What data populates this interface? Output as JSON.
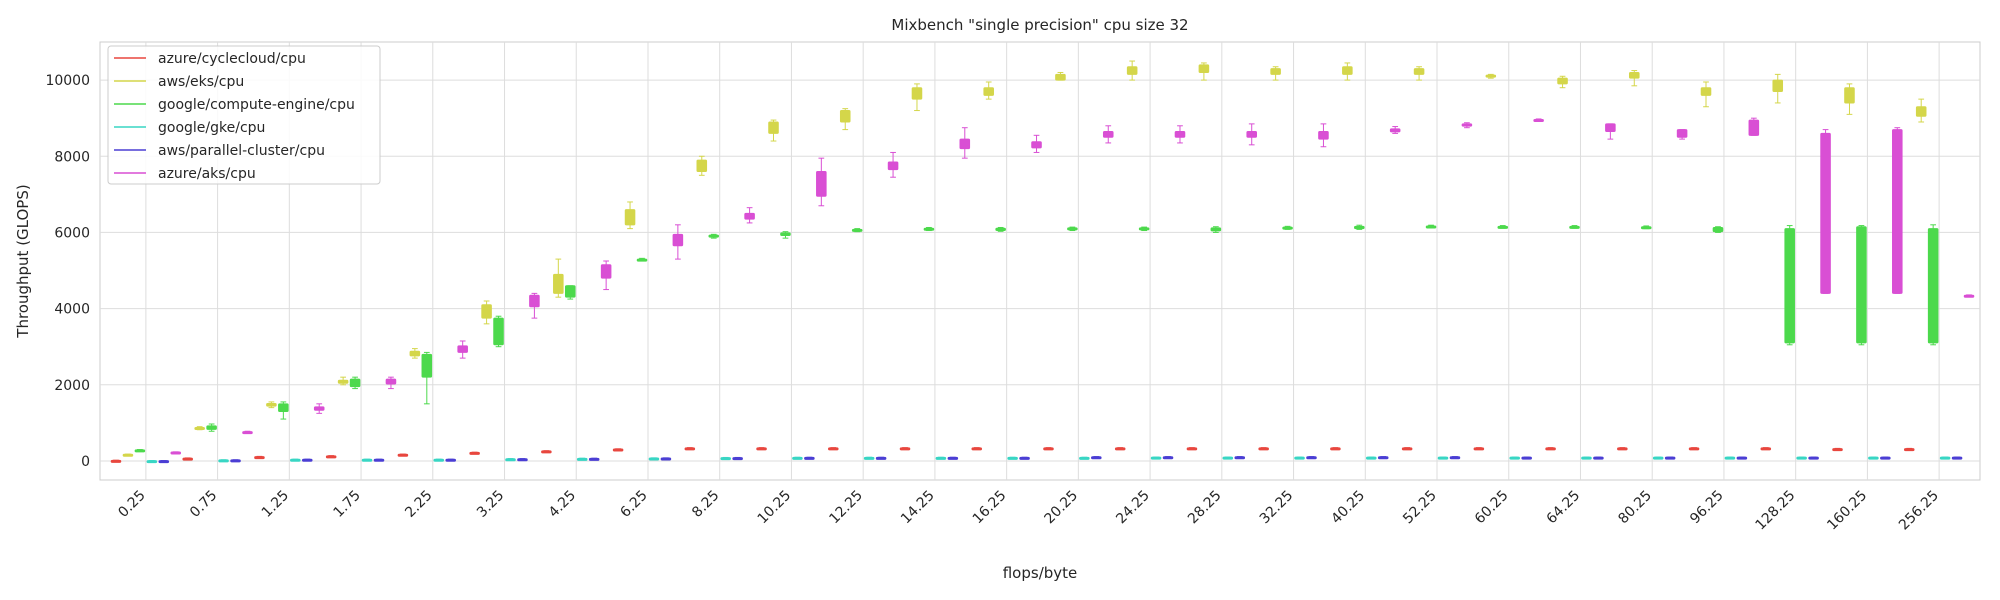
{
  "chart_data": {
    "type": "box",
    "title": "Mixbench \"single precision\" cpu size 32",
    "xlabel": "flops/byte",
    "ylabel": "Throughput (GLOPS)",
    "ylim": [
      -500,
      11000
    ],
    "yticks": [
      0,
      2000,
      4000,
      6000,
      8000,
      10000
    ],
    "grid": true,
    "legend_position": "top-left",
    "categories": [
      "0.25",
      "0.75",
      "1.25",
      "1.75",
      "2.25",
      "3.25",
      "4.25",
      "6.25",
      "8.25",
      "10.25",
      "12.25",
      "14.25",
      "16.25",
      "20.25",
      "24.25",
      "28.25",
      "32.25",
      "40.25",
      "52.25",
      "60.25",
      "64.25",
      "80.25",
      "96.25",
      "128.25",
      "160.25",
      "256.25"
    ],
    "series": [
      {
        "name": "azure/cyclecloud/cpu",
        "color": "#e8473f",
        "values": [
          [
            5,
            8,
            12,
            15,
            20
          ],
          [
            60,
            65,
            70,
            75,
            80
          ],
          [
            100,
            105,
            110,
            115,
            120
          ],
          [
            120,
            125,
            130,
            135,
            140
          ],
          [
            160,
            165,
            170,
            175,
            180
          ],
          [
            210,
            215,
            220,
            225,
            230
          ],
          [
            250,
            255,
            260,
            265,
            270
          ],
          [
            300,
            305,
            310,
            315,
            320
          ],
          [
            330,
            335,
            340,
            345,
            350
          ],
          [
            330,
            335,
            340,
            345,
            350
          ],
          [
            330,
            335,
            340,
            345,
            350
          ],
          [
            330,
            335,
            340,
            345,
            350
          ],
          [
            330,
            335,
            340,
            345,
            350
          ],
          [
            330,
            335,
            340,
            345,
            350
          ],
          [
            330,
            335,
            340,
            345,
            350
          ],
          [
            330,
            335,
            340,
            345,
            350
          ],
          [
            330,
            335,
            340,
            345,
            350
          ],
          [
            330,
            335,
            340,
            345,
            350
          ],
          [
            330,
            335,
            340,
            345,
            350
          ],
          [
            330,
            335,
            340,
            345,
            350
          ],
          [
            330,
            335,
            340,
            345,
            350
          ],
          [
            330,
            335,
            340,
            345,
            350
          ],
          [
            330,
            335,
            340,
            345,
            350
          ],
          [
            330,
            335,
            340,
            345,
            350
          ],
          [
            310,
            315,
            320,
            325,
            330
          ],
          [
            310,
            315,
            320,
            325,
            330
          ]
        ]
      },
      {
        "name": "aws/eks/cpu",
        "color": "#d4d64a",
        "values": [
          [
            160,
            165,
            170,
            175,
            180
          ],
          [
            820,
            840,
            860,
            880,
            900
          ],
          [
            1400,
            1440,
            1470,
            1510,
            1550
          ],
          [
            2000,
            2040,
            2080,
            2120,
            2200
          ],
          [
            2700,
            2760,
            2820,
            2880,
            2950
          ],
          [
            3600,
            3750,
            3900,
            4100,
            4200
          ],
          [
            4300,
            4400,
            4500,
            4900,
            5300
          ],
          [
            6100,
            6200,
            6300,
            6600,
            6800
          ],
          [
            7500,
            7600,
            7700,
            7900,
            8000
          ],
          [
            8400,
            8600,
            8700,
            8900,
            8950
          ],
          [
            8700,
            8900,
            9000,
            9200,
            9250
          ],
          [
            9200,
            9500,
            9600,
            9800,
            9900
          ],
          [
            9500,
            9600,
            9700,
            9800,
            9950
          ],
          [
            10000,
            10000,
            10050,
            10150,
            10200
          ],
          [
            10000,
            10150,
            10250,
            10350,
            10500
          ],
          [
            10000,
            10200,
            10300,
            10400,
            10450
          ],
          [
            10000,
            10150,
            10200,
            10300,
            10350
          ],
          [
            10000,
            10150,
            10250,
            10350,
            10450
          ],
          [
            10000,
            10150,
            10200,
            10300,
            10350
          ],
          [
            10050,
            10080,
            10100,
            10130,
            10150
          ],
          [
            9800,
            9900,
            10000,
            10050,
            10100
          ],
          [
            9850,
            10050,
            10100,
            10200,
            10250
          ],
          [
            9300,
            9600,
            9700,
            9800,
            9950
          ],
          [
            9400,
            9700,
            9850,
            10000,
            10150
          ],
          [
            9100,
            9400,
            9600,
            9800,
            9900
          ],
          [
            8900,
            9050,
            9150,
            9300,
            9500
          ]
        ]
      },
      {
        "name": "google/compute-engine/cpu",
        "color": "#4cd94c",
        "values": [
          [
            260,
            270,
            280,
            290,
            300
          ],
          [
            780,
            830,
            880,
            920,
            970
          ],
          [
            1100,
            1300,
            1400,
            1500,
            1550
          ],
          [
            1900,
            1950,
            2050,
            2150,
            2200
          ],
          [
            1500,
            2200,
            2500,
            2800,
            2850
          ],
          [
            3000,
            3050,
            3400,
            3750,
            3800
          ],
          [
            4250,
            4300,
            4450,
            4600,
            4600
          ],
          [
            5250,
            5260,
            5280,
            5300,
            5320
          ],
          [
            5850,
            5880,
            5900,
            5930,
            5950
          ],
          [
            5850,
            5920,
            5960,
            5990,
            6020
          ],
          [
            6020,
            6040,
            6060,
            6080,
            6100
          ],
          [
            6050,
            6070,
            6090,
            6110,
            6130
          ],
          [
            6030,
            6050,
            6080,
            6110,
            6130
          ],
          [
            6050,
            6070,
            6090,
            6120,
            6140
          ],
          [
            6050,
            6070,
            6090,
            6120,
            6140
          ],
          [
            6000,
            6040,
            6080,
            6120,
            6150
          ],
          [
            6080,
            6100,
            6120,
            6140,
            6160
          ],
          [
            6080,
            6100,
            6130,
            6160,
            6190
          ],
          [
            6120,
            6130,
            6150,
            6170,
            6190
          ],
          [
            6110,
            6120,
            6140,
            6160,
            6180
          ],
          [
            6110,
            6120,
            6140,
            6160,
            6180
          ],
          [
            6100,
            6110,
            6130,
            6150,
            6170
          ],
          [
            6000,
            6020,
            6070,
            6130,
            6150
          ],
          [
            3050,
            3100,
            5000,
            6100,
            6180
          ],
          [
            3050,
            3100,
            5000,
            6150,
            6180
          ],
          [
            3050,
            3100,
            5000,
            6100,
            6200
          ]
        ]
      },
      {
        "name": "google/gke/cpu",
        "color": "#38d6c4",
        "values": [
          [
            0,
            2,
            5,
            8,
            10
          ],
          [
            20,
            23,
            26,
            29,
            32
          ],
          [
            35,
            38,
            41,
            44,
            47
          ],
          [
            35,
            38,
            41,
            44,
            47
          ],
          [
            35,
            38,
            41,
            44,
            47
          ],
          [
            50,
            53,
            56,
            59,
            62
          ],
          [
            60,
            63,
            66,
            69,
            72
          ],
          [
            70,
            73,
            76,
            79,
            82
          ],
          [
            80,
            83,
            86,
            89,
            92
          ],
          [
            85,
            88,
            91,
            94,
            97
          ],
          [
            85,
            88,
            91,
            94,
            97
          ],
          [
            85,
            88,
            91,
            94,
            97
          ],
          [
            85,
            88,
            91,
            94,
            97
          ],
          [
            85,
            88,
            91,
            94,
            97
          ],
          [
            90,
            93,
            96,
            99,
            102
          ],
          [
            90,
            93,
            96,
            99,
            102
          ],
          [
            90,
            93,
            96,
            99,
            102
          ],
          [
            90,
            93,
            96,
            99,
            102
          ],
          [
            90,
            93,
            96,
            99,
            102
          ],
          [
            90,
            93,
            96,
            99,
            102
          ],
          [
            90,
            93,
            96,
            99,
            102
          ],
          [
            90,
            93,
            96,
            99,
            102
          ],
          [
            90,
            93,
            96,
            99,
            102
          ],
          [
            90,
            93,
            96,
            99,
            102
          ],
          [
            90,
            93,
            96,
            99,
            102
          ],
          [
            90,
            93,
            96,
            99,
            102
          ]
        ]
      },
      {
        "name": "aws/parallel-cluster/cpu",
        "color": "#4b3fd4",
        "values": [
          [
            0,
            2,
            5,
            8,
            10
          ],
          [
            20,
            23,
            26,
            29,
            32
          ],
          [
            35,
            38,
            41,
            44,
            47
          ],
          [
            35,
            38,
            41,
            44,
            47
          ],
          [
            35,
            38,
            41,
            44,
            47
          ],
          [
            50,
            53,
            56,
            59,
            62
          ],
          [
            60,
            63,
            66,
            69,
            72
          ],
          [
            70,
            73,
            76,
            79,
            82
          ],
          [
            80,
            83,
            86,
            89,
            92
          ],
          [
            85,
            88,
            91,
            94,
            97
          ],
          [
            85,
            88,
            91,
            94,
            97
          ],
          [
            85,
            88,
            91,
            94,
            97
          ],
          [
            85,
            88,
            91,
            94,
            97
          ],
          [
            95,
            100,
            105,
            110,
            115
          ],
          [
            95,
            100,
            105,
            110,
            115
          ],
          [
            95,
            100,
            105,
            110,
            115
          ],
          [
            95,
            100,
            105,
            110,
            115
          ],
          [
            95,
            100,
            105,
            110,
            115
          ],
          [
            95,
            100,
            105,
            110,
            115
          ],
          [
            90,
            93,
            96,
            99,
            102
          ],
          [
            90,
            93,
            96,
            99,
            102
          ],
          [
            90,
            93,
            96,
            99,
            102
          ],
          [
            90,
            93,
            96,
            99,
            102
          ],
          [
            90,
            93,
            96,
            99,
            102
          ],
          [
            90,
            93,
            96,
            99,
            102
          ],
          [
            90,
            93,
            96,
            99,
            102
          ]
        ]
      },
      {
        "name": "azure/aks/cpu",
        "color": "#d94fd4",
        "values": [
          [
            220,
            225,
            230,
            235,
            240
          ],
          [
            740,
            750,
            760,
            770,
            780
          ],
          [
            1250,
            1330,
            1370,
            1420,
            1500
          ],
          [
            1900,
            2020,
            2080,
            2150,
            2200
          ],
          [
            2700,
            2850,
            2930,
            3020,
            3150
          ],
          [
            3750,
            4050,
            4200,
            4350,
            4400
          ],
          [
            4500,
            4800,
            5000,
            5150,
            5250
          ],
          [
            5300,
            5650,
            5850,
            5950,
            6200
          ],
          [
            6250,
            6350,
            6450,
            6500,
            6650
          ],
          [
            6700,
            6950,
            7300,
            7600,
            7950
          ],
          [
            7450,
            7650,
            7750,
            7850,
            8100
          ],
          [
            7950,
            8200,
            8350,
            8450,
            8750
          ],
          [
            8100,
            8220,
            8300,
            8380,
            8550
          ],
          [
            8350,
            8500,
            8580,
            8650,
            8800
          ],
          [
            8350,
            8500,
            8580,
            8650,
            8800
          ],
          [
            8300,
            8500,
            8600,
            8650,
            8850
          ],
          [
            8250,
            8450,
            8550,
            8650,
            8850
          ],
          [
            8600,
            8640,
            8680,
            8720,
            8780
          ],
          [
            8750,
            8790,
            8820,
            8850,
            8880
          ],
          [
            8920,
            8935,
            8950,
            8965,
            8980
          ],
          [
            8450,
            8650,
            8750,
            8850,
            8850
          ],
          [
            8450,
            8500,
            8600,
            8700,
            8700
          ],
          [
            8550,
            8550,
            8700,
            8950,
            9000
          ],
          [
            4400,
            4400,
            6500,
            8600,
            8700
          ],
          [
            4400,
            4400,
            6500,
            8700,
            8750
          ],
          [
            4320,
            4330,
            4340,
            4350,
            4360
          ]
        ]
      }
    ]
  }
}
